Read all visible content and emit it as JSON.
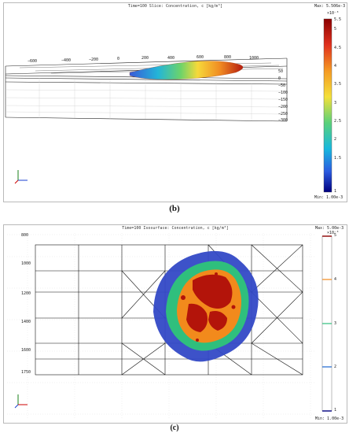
{
  "panel_b": {
    "title": "Time=100    Slice: Concentration, c [kg/m³]",
    "caption": "(b)",
    "colorbar": {
      "max_label": "Max: 5.506e-3",
      "exponent": "×10⁻³",
      "ticks": [
        "5.5",
        "5",
        "4.5",
        "4",
        "3.5",
        "3",
        "2.5",
        "2",
        "1.5",
        "1"
      ],
      "min_label": "Min: 1.00e-3"
    },
    "x_ticks": [
      "−600",
      "−400",
      "−200",
      "0",
      "200",
      "400",
      "600",
      "800",
      "1000"
    ],
    "y_ticks": [
      "50",
      "0",
      "−50",
      "−100",
      "−150",
      "−200",
      "−250",
      "−300"
    ]
  },
  "panel_c": {
    "title": "Time=100    Isosurface: Concentration, c [kg/m³]",
    "caption": "(c)",
    "colorbar": {
      "max_label": "Max: 5.00e-3",
      "exponent": "×10⁻³",
      "ticks": [
        "5",
        "4",
        "3",
        "2",
        "1"
      ],
      "min_label": "Min: 1.00e-3"
    },
    "y_ticks": [
      "800",
      "1000",
      "1200",
      "1400",
      "1600",
      "1750"
    ]
  },
  "colors": {
    "jet_top": "#8b0000",
    "plume_red": "#b3140a",
    "plume_orange": "#f28a1c",
    "plume_green": "#2fbf7d",
    "plume_blue": "#3349c6"
  }
}
